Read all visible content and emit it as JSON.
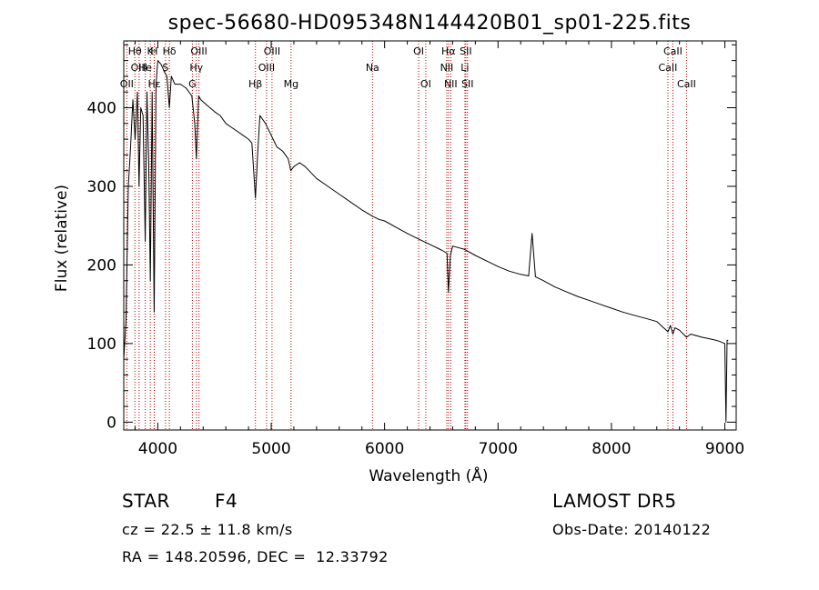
{
  "chart_data": {
    "type": "line",
    "title": "spec-56680-HD095348N144420B01_sp01-225.fits",
    "xlabel": "Wavelength (Å)",
    "ylabel": "Flux (relative)",
    "xlim": [
      3700,
      9100
    ],
    "ylim": [
      -10,
      485
    ],
    "x_ticks": [
      4000,
      5000,
      6000,
      7000,
      8000,
      9000
    ],
    "y_ticks": [
      0,
      100,
      200,
      300,
      400
    ],
    "x_tick_labels": [
      "4000",
      "5000",
      "6000",
      "7000",
      "8000",
      "9000"
    ],
    "y_tick_labels": [
      "0",
      "100",
      "200",
      "300",
      "400"
    ],
    "grid": false,
    "series": [
      {
        "x": [
          3700,
          3720,
          3740,
          3760,
          3780,
          3800,
          3820,
          3835,
          3850,
          3870,
          3889,
          3905,
          3920,
          3934,
          3950,
          3968,
          3985,
          4000,
          4030,
          4060,
          4080,
          4102,
          4120,
          4150,
          4200,
          4250,
          4300,
          4326,
          4340,
          4360,
          4380,
          4420,
          4460,
          4500,
          4550,
          4600,
          4650,
          4700,
          4750,
          4800,
          4830,
          4861,
          4880,
          4900,
          4950,
          5000,
          5050,
          5100,
          5150,
          5172,
          5200,
          5250,
          5300,
          5400,
          5500,
          5600,
          5700,
          5800,
          5893,
          5950,
          6000,
          6100,
          6200,
          6300,
          6400,
          6500,
          6550,
          6563,
          6580,
          6600,
          6700,
          6800,
          6900,
          7000,
          7100,
          7200,
          7270,
          7300,
          7330,
          7400,
          7500,
          7600,
          7700,
          7800,
          7900,
          8000,
          8100,
          8200,
          8300,
          8400,
          8498,
          8520,
          8542,
          8560,
          8600,
          8662,
          8700,
          8800,
          8900,
          8950,
          9000,
          9010,
          9020,
          9030
        ],
        "y": [
          80,
          130,
          300,
          350,
          410,
          360,
          420,
          300,
          400,
          390,
          230,
          420,
          330,
          180,
          420,
          140,
          430,
          460,
          455,
          445,
          440,
          400,
          440,
          430,
          430,
          425,
          415,
          380,
          335,
          415,
          410,
          405,
          400,
          395,
          390,
          380,
          375,
          370,
          365,
          360,
          355,
          285,
          340,
          390,
          380,
          365,
          350,
          345,
          335,
          320,
          325,
          330,
          325,
          310,
          300,
          290,
          280,
          270,
          262,
          258,
          256,
          248,
          240,
          233,
          226,
          219,
          215,
          165,
          212,
          224,
          220,
          212,
          205,
          198,
          192,
          188,
          186,
          240,
          185,
          180,
          172,
          166,
          160,
          155,
          150,
          145,
          140,
          136,
          132,
          128,
          115,
          123,
          112,
          120,
          117,
          108,
          112,
          108,
          105,
          103,
          100,
          0,
          104,
          104
        ]
      }
    ],
    "lines": [
      {
        "wavelength": 3727,
        "label": "OII",
        "row": 3
      },
      {
        "wavelength": 3798,
        "label": "Hθ",
        "row": 1
      },
      {
        "wavelength": 3835,
        "label": "OIII",
        "row": 2
      },
      {
        "wavelength": 3889,
        "label": "He",
        "row": 2
      },
      {
        "wavelength": 3934,
        "label": "K",
        "row": 1
      },
      {
        "wavelength": 3968,
        "label": "H",
        "row": 1
      },
      {
        "wavelength": 3970,
        "label": "Hε",
        "row": 3
      },
      {
        "wavelength": 4068,
        "label": "S",
        "row": 2
      },
      {
        "wavelength": 4102,
        "label": "Hδ",
        "row": 1
      },
      {
        "wavelength": 4305,
        "label": "G",
        "row": 3
      },
      {
        "wavelength": 4340,
        "label": "Hγ",
        "row": 2
      },
      {
        "wavelength": 4363,
        "label": "OIII",
        "row": 1
      },
      {
        "wavelength": 4861,
        "label": "Hβ",
        "row": 3
      },
      {
        "wavelength": 4959,
        "label": "OIII",
        "row": 2
      },
      {
        "wavelength": 5007,
        "label": "OIII",
        "row": 1
      },
      {
        "wavelength": 5175,
        "label": "Mg",
        "row": 3
      },
      {
        "wavelength": 5893,
        "label": "Na",
        "row": 2
      },
      {
        "wavelength": 6300,
        "label": "OI",
        "row": 1
      },
      {
        "wavelength": 6363,
        "label": "OI",
        "row": 3
      },
      {
        "wavelength": 6548,
        "label": "NII",
        "row": 2
      },
      {
        "wavelength": 6563,
        "label": "Hα",
        "row": 1
      },
      {
        "wavelength": 6583,
        "label": "NII",
        "row": 3
      },
      {
        "wavelength": 6708,
        "label": "Li",
        "row": 2
      },
      {
        "wavelength": 6716,
        "label": "SII",
        "row": 1
      },
      {
        "wavelength": 6731,
        "label": "SII",
        "row": 3
      },
      {
        "wavelength": 8498,
        "label": "CaII",
        "row": 2
      },
      {
        "wavelength": 8542,
        "label": "CaII",
        "row": 1
      },
      {
        "wavelength": 8662,
        "label": "CaII",
        "row": 3
      }
    ]
  },
  "info": {
    "class_label": "STAR",
    "subclass": "F4",
    "survey": "LAMOST DR5",
    "redshift_text": "cz = 22.5 ± 11.8 km/s",
    "obs_date": "Obs-Date: 20140122",
    "coords": "RA = 148.20596, DEC =  12.33792"
  }
}
